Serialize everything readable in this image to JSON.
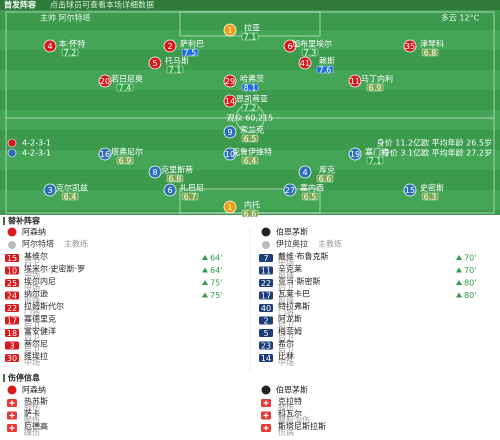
{
  "lineup": {
    "title": "首发阵容",
    "subtitle": "点击球员可查看本场详细数据",
    "coach_note": "主帅 阿尔特塔",
    "weather": "多云 12°C",
    "attendance": "观众 60,215",
    "home": {
      "name": "阿森纳",
      "formation": "4-2-3-1",
      "stats": "身价 11.2亿欧 平均年龄 26.5岁",
      "rows": [
        [
          {
            "number": "1",
            "name": "拉亚",
            "rating": 7.1
          }
        ],
        [
          {
            "number": "4",
            "name": "本·怀特",
            "rating": 7.2
          },
          {
            "number": "2",
            "name": "萨利巴",
            "rating": 7.5
          },
          {
            "number": "6",
            "name": "加布里埃尔",
            "rating": 7.3
          },
          {
            "number": "35",
            "name": "津琴科",
            "rating": 6.8
          }
        ],
        [
          {
            "number": "5",
            "name": "托马斯",
            "rating": 7.1
          },
          {
            "number": "41",
            "name": "赖斯",
            "rating": 7.6
          }
        ],
        [
          {
            "number": "20",
            "name": "若日尼奥",
            "rating": 7.4
          },
          {
            "number": "29",
            "name": "哈弗茨",
            "rating": 8.1
          },
          {
            "number": "11",
            "name": "马丁内利",
            "rating": 6.9
          }
        ],
        [
          {
            "number": "14",
            "name": "恩凯蒂亚",
            "rating": 7.2
          }
        ]
      ]
    },
    "away": {
      "name": "伯恩茅斯",
      "formation": "4-2-3-1",
      "stats": "身价 3.1亿欧 平均年龄 27.2岁",
      "rows": [
        [
          {
            "number": "1",
            "name": "内托",
            "rating": 6.6
          }
        ],
        [
          {
            "number": "3",
            "name": "克尔凯兹",
            "rating": 6.4
          },
          {
            "number": "6",
            "name": "扎巴尼",
            "rating": 6.7
          },
          {
            "number": "27",
            "name": "塞内西",
            "rating": 6.5
          },
          {
            "number": "15",
            "name": "史密斯",
            "rating": 6.3
          }
        ],
        [
          {
            "number": "8",
            "name": "克里斯蒂",
            "rating": 6.8
          },
          {
            "number": "4",
            "name": "库克",
            "rating": 6.6
          }
        ],
        [
          {
            "number": "16",
            "name": "塔弗尼尔",
            "rating": 6.9
          },
          {
            "number": "10",
            "name": "克鲁伊维特",
            "rating": 6.4
          },
          {
            "number": "19",
            "name": "塞门约",
            "rating": 7.1
          }
        ],
        [
          {
            "number": "9",
            "name": "索兰克",
            "rating": 6.5
          }
        ]
      ]
    }
  },
  "substitutes": {
    "title": "替补阵容",
    "home": {
      "name": "阿森纳",
      "coach": "阿尔特塔",
      "coach_role": "主教练",
      "players": [
        {
          "number": "15",
          "name": "基维尔",
          "position": "后卫",
          "minute": "64'"
        },
        {
          "number": "10",
          "name": "埃米尔·史密斯·罗",
          "position": "中场",
          "minute": "64'"
        },
        {
          "number": "25",
          "name": "埃尔内尼",
          "position": "中场",
          "minute": "75'"
        },
        {
          "number": "24",
          "name": "纳尔逊",
          "position": "前锋",
          "minute": "75'"
        },
        {
          "number": "22",
          "name": "拉姆斯代尔",
          "position": "门将"
        },
        {
          "number": "17",
          "name": "塞德里克",
          "position": "后卫"
        },
        {
          "number": "18",
          "name": "富安健洋",
          "position": "后卫"
        },
        {
          "number": "3",
          "name": "蒂尔尼",
          "position": "后卫"
        },
        {
          "number": "30",
          "name": "维埃拉",
          "position": "中场"
        }
      ]
    },
    "away": {
      "name": "伯恩茅斯",
      "coach": "伊拉奥拉",
      "coach_role": "主教练",
      "players": [
        {
          "number": "7",
          "name": "戴维·布鲁克斯",
          "position": "中场",
          "minute": "70'"
        },
        {
          "number": "11",
          "name": "辛克莱",
          "position": "前锋",
          "minute": "70'"
        },
        {
          "number": "22",
          "name": "亚当·斯密斯",
          "position": "后卫",
          "minute": "80'"
        },
        {
          "number": "17",
          "name": "瓦莱卡巴",
          "position": "前锋",
          "minute": "80'"
        },
        {
          "number": "40",
          "name": "特拉弗斯",
          "position": "门将"
        },
        {
          "number": "2",
          "name": "阿龙斯",
          "position": "后卫"
        },
        {
          "number": "5",
          "name": "梅菲姆",
          "position": "后卫"
        },
        {
          "number": "23",
          "name": "希尔",
          "position": "后卫"
        },
        {
          "number": "14",
          "name": "比林",
          "position": "中场"
        }
      ]
    }
  },
  "injuries": {
    "title": "伤停信息",
    "home": {
      "name": "阿森纳",
      "players": [
        {
          "name": "热苏斯",
          "reason": "膝伤"
        },
        {
          "name": "萨卡",
          "reason": "腿伤"
        },
        {
          "name": "厄德高",
          "reason": "踝伤"
        }
      ]
    },
    "away": {
      "name": "伯恩茅斯",
      "players": [
        {
          "name": "克拉特",
          "reason": "膝伤"
        },
        {
          "name": "科瓦尔",
          "reason": "腹股沟伤"
        },
        {
          "name": "斯塔尼斯拉斯",
          "reason": "伤病"
        }
      ]
    }
  }
}
